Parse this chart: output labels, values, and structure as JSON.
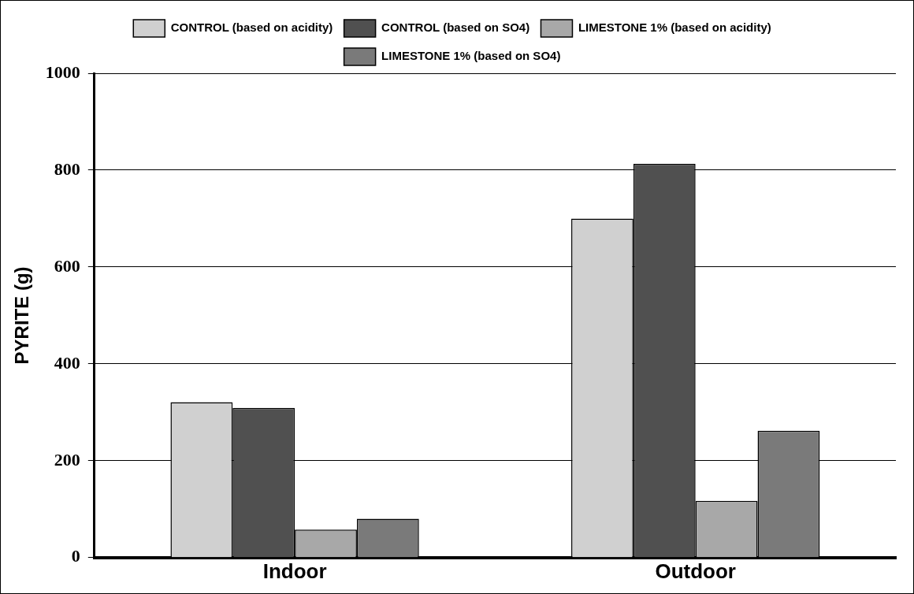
{
  "chart_data": {
    "type": "bar",
    "ylabel": "PYRITE (g)",
    "categories": [
      "Indoor",
      "Outdoor"
    ],
    "series": [
      {
        "name": "CONTROL (based on acidity)",
        "color": "#d0d0d0",
        "values": [
          321,
          700
        ]
      },
      {
        "name": "CONTROL (based on SO4)",
        "color": "#505050",
        "values": [
          309,
          813
        ]
      },
      {
        "name": "LIMESTONE 1% (based on acidity)",
        "color": "#a8a8a8",
        "values": [
          58,
          117
        ]
      },
      {
        "name": "LIMESTONE 1% (based on SO4)",
        "color": "#7a7a7a",
        "values": [
          80,
          262
        ]
      }
    ],
    "ylim": [
      0,
      1000
    ],
    "yticks": [
      0,
      200,
      400,
      600,
      800,
      1000
    ],
    "grid": "y",
    "legend": "top"
  }
}
